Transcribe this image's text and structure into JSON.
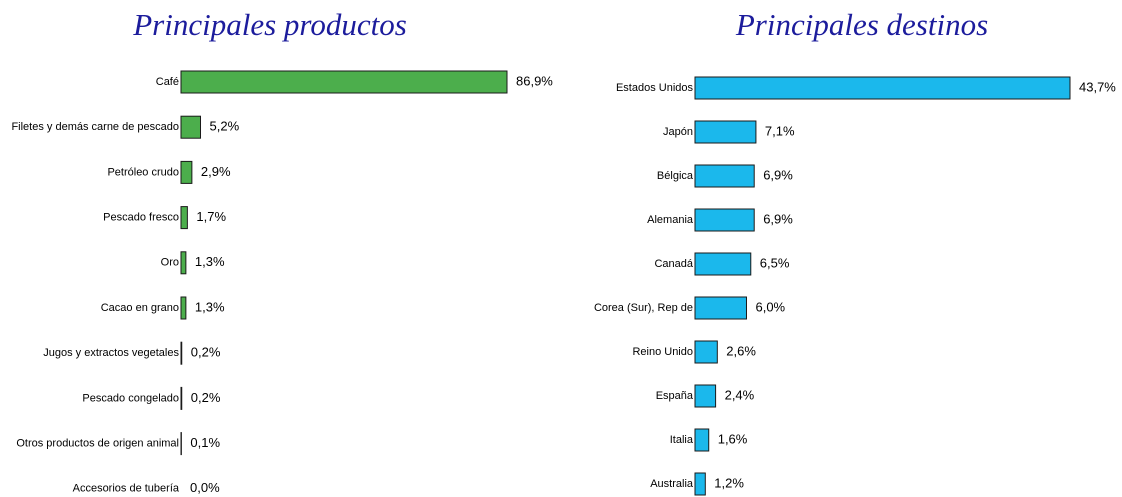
{
  "chart_data": [
    {
      "type": "bar",
      "orientation": "horizontal",
      "title": "Principales productos",
      "color": "#4cae4c",
      "categories": [
        "Café",
        "Filetes y demás carne de pescado",
        "Petróleo crudo",
        "Pescado fresco",
        "Oro",
        "Cacao en grano",
        "Jugos y extractos vegetales",
        "Pescado congelado",
        "Otros productos de origen animal",
        "Accesorios de tubería"
      ],
      "values": [
        86.9,
        5.2,
        2.9,
        1.7,
        1.3,
        1.3,
        0.2,
        0.2,
        0.1,
        0.0
      ],
      "value_labels": [
        "86,9%",
        "5,2%",
        "2,9%",
        "1,7%",
        "1,3%",
        "1,3%",
        "0,2%",
        "0,2%",
        "0,1%",
        "0,0%"
      ]
    },
    {
      "type": "bar",
      "orientation": "horizontal",
      "title": "Principales destinos",
      "color": "#1bb8ec",
      "categories": [
        "Estados Unidos",
        "Japón",
        "Bélgica",
        "Alemania",
        "Canadá",
        "Corea (Sur), Rep de",
        "Reino Unido",
        "España",
        "Italia",
        "Australia"
      ],
      "values": [
        43.7,
        7.1,
        6.9,
        6.9,
        6.5,
        6.0,
        2.6,
        2.4,
        1.6,
        1.2
      ],
      "value_labels": [
        "43,7%",
        "7,1%",
        "6,9%",
        "6,9%",
        "6,5%",
        "6,0%",
        "2,6%",
        "2,4%",
        "1,6%",
        "1,2%"
      ]
    }
  ]
}
